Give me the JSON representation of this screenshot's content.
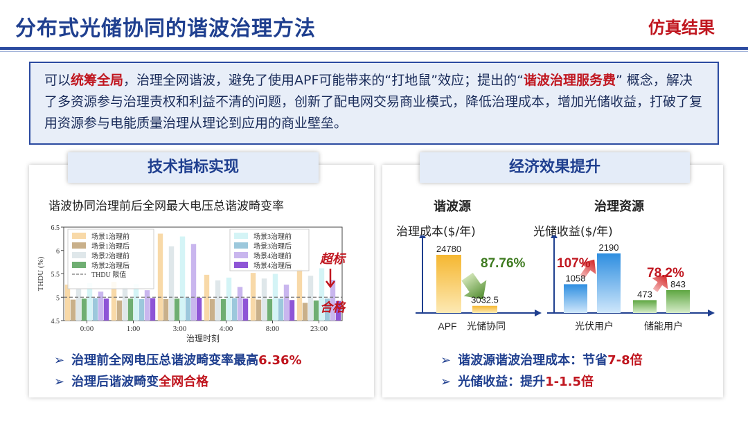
{
  "header": {
    "title": "分布式光储协同的谐波治理方法",
    "section": "仿真结果"
  },
  "intro": {
    "p1": "可以",
    "h1": "统筹全局",
    "p2": "，治理全网谐波，避免了使用APF可能带来的“打地鼠”效应；提出的“",
    "h2": "谐波治理服务费",
    "p3": "” 概念，解决了多资源参与治理责权和利益不清的问题，创新了配电网交易商业模式，降低治理成本，增加光储收益，打破了复用资源参与电能质量治理从理论到应用的商业壁垒。"
  },
  "left": {
    "title": "技术指标实现",
    "chart_caption": "谐波协同治理前后全网最大电压总谐波畸变率",
    "label_over": "超标",
    "label_ok": "合格",
    "bullet1_a": "治理前全网电压总谐波畸变率最高",
    "bullet1_b": "6.36%",
    "bullet2_a": "治理后谐波畸变",
    "bullet2_b": "全网合格"
  },
  "right": {
    "title": "经济效果提升",
    "col1_title": "谐波源",
    "col2_title": "治理资源",
    "cost_label": "治理成本($/年)",
    "income_label": "光储收益($/年)",
    "pct_cost": "87.76%",
    "pct_pv": "107%",
    "pct_storage": "78.2%",
    "bullet1_a": "谐波源谐波治理成本：节省",
    "bullet1_b": "7-8倍",
    "bullet2_a": "光储收益：提升",
    "bullet2_b": "1-1.5倍"
  },
  "chart_data": [
    {
      "type": "bar",
      "title": "",
      "xlabel": "治理时刻",
      "ylabel": "THDU (%)",
      "ylim": [
        4.5,
        6.5
      ],
      "yticks": [
        4.5,
        5,
        5.5,
        6,
        6.5
      ],
      "categories": [
        "0:00",
        "1:00",
        "3:00",
        "4:00",
        "8:00",
        "23:00"
      ],
      "threshold": {
        "name": "THDU 限值",
        "value": 5.0
      },
      "legend_position": "top-left",
      "series": [
        {
          "name": "场景1治理前",
          "color": "#f8d9a8",
          "values": [
            5.27,
            5.33,
            6.36,
            5.48,
            5.52,
            5.6
          ]
        },
        {
          "name": "场景1治理后",
          "color": "#c9b08a",
          "values": [
            4.95,
            4.93,
            4.96,
            4.96,
            4.95,
            4.88
          ]
        },
        {
          "name": "场景2治理前",
          "color": "#dfe7ea",
          "values": [
            5.18,
            5.22,
            6.09,
            5.36,
            5.4,
            5.46
          ]
        },
        {
          "name": "场景2治理后",
          "color": "#6fae72",
          "values": [
            4.97,
            4.97,
            4.97,
            4.96,
            4.96,
            4.93
          ]
        },
        {
          "name": "场景3治理前",
          "color": "#d4f4f6",
          "values": [
            5.3,
            5.28,
            6.3,
            5.42,
            5.5,
            5.62
          ]
        },
        {
          "name": "场景3治理后",
          "color": "#9cc8dc",
          "values": [
            4.98,
            4.96,
            4.99,
            4.98,
            4.97,
            4.97
          ]
        },
        {
          "name": "场景4治理前",
          "color": "#c9b6ee",
          "values": [
            5.12,
            5.15,
            6.14,
            5.22,
            5.27,
            5.37
          ]
        },
        {
          "name": "场景4治理后",
          "color": "#8e55d6",
          "values": [
            4.97,
            4.98,
            4.99,
            4.97,
            4.94,
            4.92
          ]
        }
      ]
    },
    {
      "type": "bar",
      "title": "",
      "ylabel": "治理成本($/年)",
      "categories": [
        "APF",
        "光储协同"
      ],
      "values": [
        24780,
        3032.5
      ],
      "value_labels": [
        "24780",
        "3032.5"
      ]
    },
    {
      "type": "bar",
      "title": "",
      "ylabel": "光储收益($/年)",
      "categories": [
        "光伏用户",
        "储能用户"
      ],
      "series": [
        {
          "values": [
            1058,
            473
          ],
          "labels": [
            "1058",
            "473"
          ]
        },
        {
          "values": [
            2190,
            843
          ],
          "labels": [
            "2190",
            "843"
          ]
        }
      ]
    }
  ]
}
